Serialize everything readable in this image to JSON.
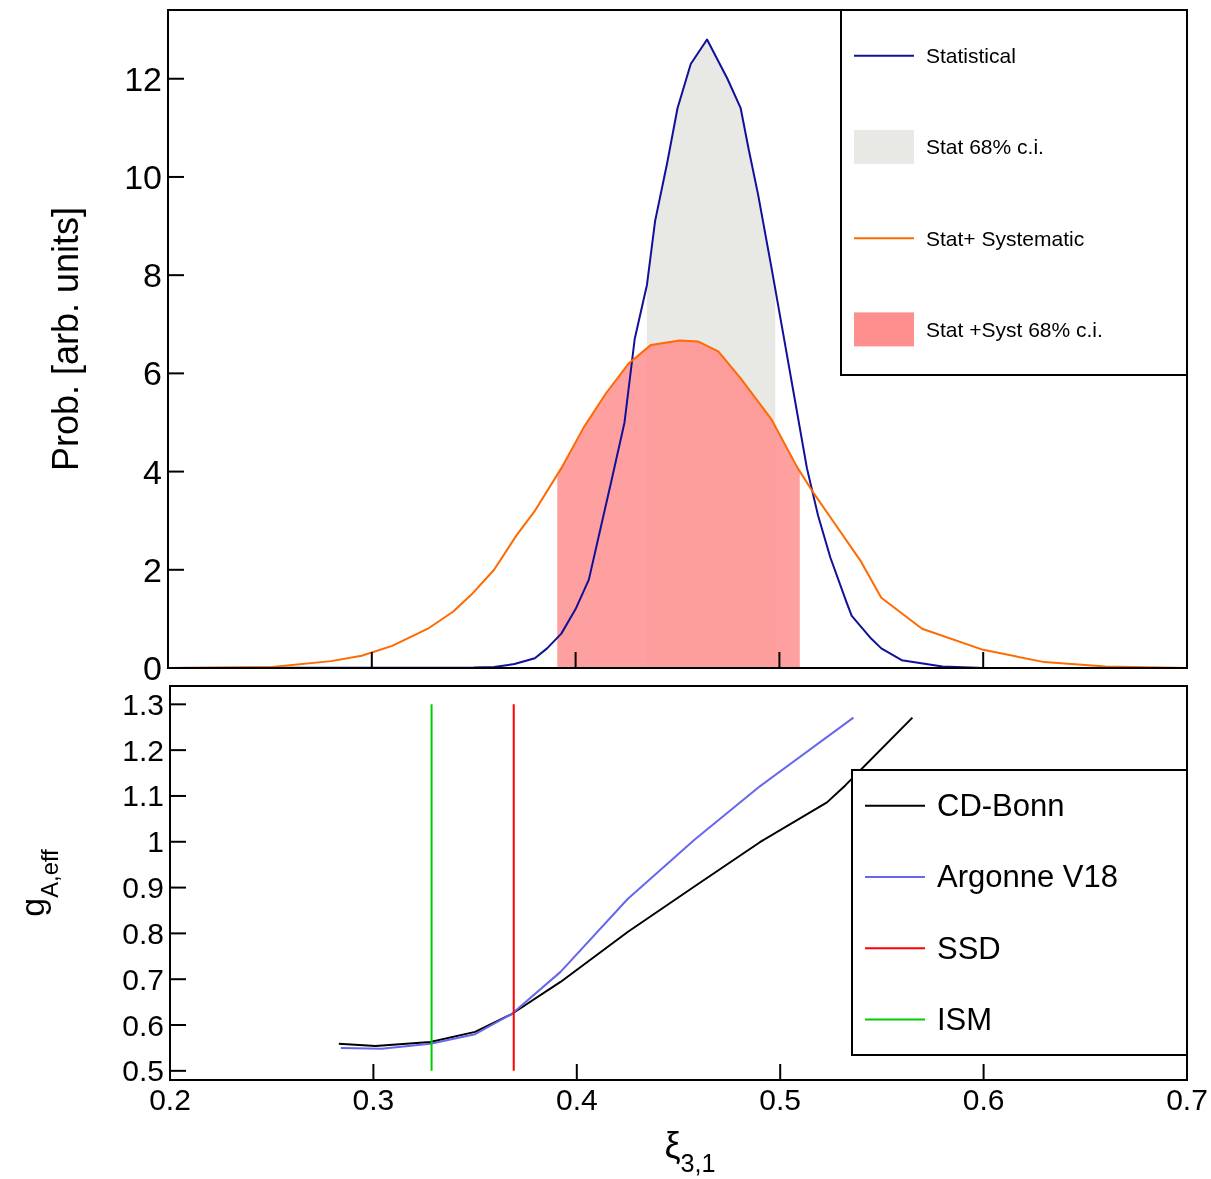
{
  "chart_data": [
    {
      "type": "line",
      "ylabel": "Prob. [arb. units]",
      "xlim": [
        0.2,
        0.7
      ],
      "ylim": [
        0,
        13.4
      ],
      "xticks": [
        0.2,
        0.3,
        0.4,
        0.5,
        0.6,
        0.7
      ],
      "yticks": [
        0,
        2,
        4,
        6,
        8,
        10,
        12
      ],
      "tick_labels": "y",
      "legend": "top right",
      "grid": false,
      "series": [
        {
          "name": "Statistical",
          "color": "#10109a",
          "x": [
            0.2,
            0.35,
            0.36,
            0.37,
            0.38,
            0.386,
            0.393,
            0.4,
            0.4065,
            0.412,
            0.4175,
            0.424,
            0.429,
            0.435,
            0.439,
            0.445,
            0.45,
            0.4565,
            0.4645,
            0.4745,
            0.481,
            0.485,
            0.4895,
            0.496,
            0.503,
            0.507,
            0.5135,
            0.519,
            0.525,
            0.533,
            0.5355,
            0.545,
            0.55,
            0.56,
            0.58,
            0.6,
            0.7
          ],
          "values": [
            0,
            0.01,
            0.02,
            0.08,
            0.2,
            0.4,
            0.7,
            1.2,
            1.8,
            2.8,
            3.8,
            5.0,
            6.7,
            7.8,
            9.1,
            10.3,
            11.4,
            12.3,
            12.8,
            12.0,
            11.4,
            10.55,
            9.65,
            8.18,
            6.54,
            5.6,
            4.07,
            3.1,
            2.25,
            1.33,
            1.06,
            0.6,
            0.4,
            0.16,
            0.03,
            0,
            0
          ]
        },
        {
          "name": "Stat 68% c.i.",
          "type": "area",
          "color": "#e8e8e4",
          "x": [
            0.435,
            0.439,
            0.445,
            0.45,
            0.4565,
            0.4645,
            0.4745,
            0.481,
            0.485,
            0.4895,
            0.496,
            0.498
          ],
          "values": [
            7.8,
            9.1,
            10.3,
            11.4,
            12.3,
            12.8,
            12.0,
            11.4,
            10.55,
            9.65,
            8.18,
            7.8
          ]
        },
        {
          "name": "Stat+ Systematic",
          "color": "#ff6a00",
          "x": [
            0.2,
            0.251,
            0.28,
            0.295,
            0.31,
            0.3275,
            0.34,
            0.349,
            0.36,
            0.371,
            0.38,
            0.393,
            0.404,
            0.415,
            0.426,
            0.437,
            0.451,
            0.46,
            0.47,
            0.481,
            0.496,
            0.509,
            0.517,
            0.525,
            0.54,
            0.55,
            0.57,
            0.6,
            0.63,
            0.66,
            0.7
          ],
          "values": [
            0,
            0.02,
            0.14,
            0.25,
            0.45,
            0.8,
            1.15,
            1.5,
            2.0,
            2.7,
            3.2,
            4.07,
            4.9,
            5.6,
            6.2,
            6.58,
            6.67,
            6.65,
            6.45,
            5.9,
            5.07,
            4.07,
            3.55,
            3.07,
            2.17,
            1.43,
            0.8,
            0.37,
            0.12,
            0.03,
            0
          ]
        },
        {
          "name": "Stat +Syst 68% c.i.",
          "type": "area",
          "color": "#ff8f8f",
          "x": [
            0.391,
            0.393,
            0.404,
            0.415,
            0.426,
            0.437,
            0.451,
            0.46,
            0.47,
            0.481,
            0.496,
            0.509,
            0.51
          ],
          "values": [
            3.9,
            4.07,
            4.9,
            5.6,
            6.2,
            6.58,
            6.67,
            6.65,
            6.45,
            5.9,
            5.07,
            4.07,
            4.0
          ]
        }
      ]
    },
    {
      "type": "line",
      "xlabel": "ξ$_{3,1}$",
      "ylabel": "g$_{A,eff}$",
      "xlim": [
        0.2,
        0.7
      ],
      "ylim": [
        0.48,
        1.34
      ],
      "xticks": [
        0.2,
        0.3,
        0.4,
        0.5,
        0.6,
        0.7
      ],
      "yticks": [
        0.5,
        0.6,
        0.7,
        0.8,
        0.9,
        1,
        1.1,
        1.2,
        1.3
      ],
      "legend": "right",
      "grid": false,
      "series": [
        {
          "name": "CD-Bonn",
          "color": "#000000",
          "x": [
            0.283,
            0.301,
            0.328,
            0.35,
            0.368,
            0.392,
            0.425,
            0.458,
            0.49,
            0.523,
            0.532,
            0.565
          ],
          "values": [
            0.559,
            0.554,
            0.563,
            0.585,
            0.624,
            0.694,
            0.803,
            0.903,
            0.999,
            1.086,
            1.123,
            1.271
          ]
        },
        {
          "name": "Argonne V18",
          "color": "#6666ee",
          "x": [
            0.284,
            0.304,
            0.328,
            0.35,
            0.368,
            0.392,
            0.425,
            0.458,
            0.49,
            0.536
          ],
          "values": [
            0.55,
            0.548,
            0.559,
            0.58,
            0.624,
            0.716,
            0.875,
            1.005,
            1.121,
            1.271
          ]
        },
        {
          "name": "SSD",
          "color": "#ff0000",
          "x": [
            0.369,
            0.369
          ],
          "values": [
            0.5,
            1.3
          ]
        },
        {
          "name": "ISM",
          "color": "#00cc00",
          "x": [
            0.3286,
            0.3286
          ],
          "values": [
            0.5,
            1.3
          ]
        }
      ]
    }
  ]
}
